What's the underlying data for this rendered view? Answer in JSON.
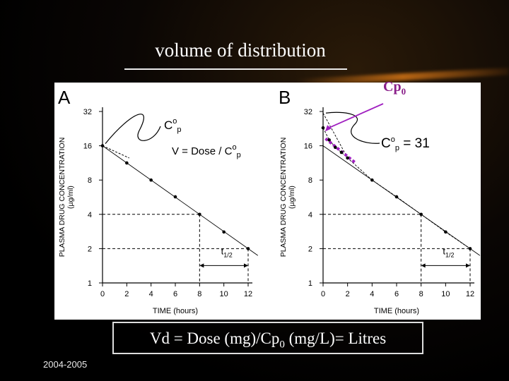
{
  "slide": {
    "title": "volume of distribution",
    "cp_label": {
      "text": "Cp",
      "sub": "0"
    },
    "formula": {
      "part1": "Vd = Dose (mg)/Cp",
      "sub": "0",
      "part2": " (mg/L)= Litres"
    },
    "year": "2004-2005",
    "colors": {
      "background": "#000000",
      "arrow": "#a020c0",
      "dots": "#a020c0"
    }
  },
  "chart_data": [
    {
      "type": "line",
      "panel": "A",
      "xlabel": "TIME (hours)",
      "ylabel_line1": "PLASMA DRUG CONCENTRATION",
      "ylabel_line2": "(µg/ml)",
      "y_scale": "log2",
      "ylim": [
        1,
        32
      ],
      "xlim": [
        0,
        12
      ],
      "x_ticks": [
        "0",
        "2",
        "4",
        "6",
        "8",
        "10",
        "12"
      ],
      "y_ticks": [
        "1",
        "2",
        "4",
        "8",
        "16",
        "32"
      ],
      "points": {
        "x": [
          0,
          2,
          4,
          6,
          8,
          10,
          12
        ],
        "y": [
          16,
          11.3,
          8,
          5.7,
          4,
          2.8,
          2
        ]
      },
      "annotations": {
        "cp0": {
          "main": "C",
          "sup": "o",
          "sub": "p"
        },
        "volume": {
          "main": "V = Dose / C",
          "sup": "o",
          "sub": "p"
        },
        "half_life": {
          "main": "t",
          "sub": "1/2"
        }
      }
    },
    {
      "type": "line",
      "panel": "B",
      "xlabel": "TIME (hours)",
      "ylabel_line1": "PLASMA DRUG CONCENTRATION",
      "ylabel_line2": "(µg/ml)",
      "y_scale": "log2",
      "ylim": [
        1,
        32
      ],
      "xlim": [
        0,
        12
      ],
      "x_ticks": [
        "0",
        "2",
        "4",
        "6",
        "8",
        "10",
        "12"
      ],
      "y_ticks": [
        "1",
        "2",
        "4",
        "8",
        "16",
        "32"
      ],
      "points": {
        "x": [
          0,
          0.5,
          1,
          1.5,
          2,
          4,
          6,
          8,
          10,
          12
        ],
        "y": [
          23,
          18,
          15.5,
          14,
          12.5,
          8,
          5.7,
          4,
          2.8,
          2
        ]
      },
      "extrapolation_y0": 31,
      "annotations": {
        "cp0": {
          "main": "C",
          "sup": "o",
          "sub": "p",
          "value": "= 31"
        },
        "half_life": {
          "main": "t",
          "sub": "1/2"
        }
      }
    }
  ]
}
